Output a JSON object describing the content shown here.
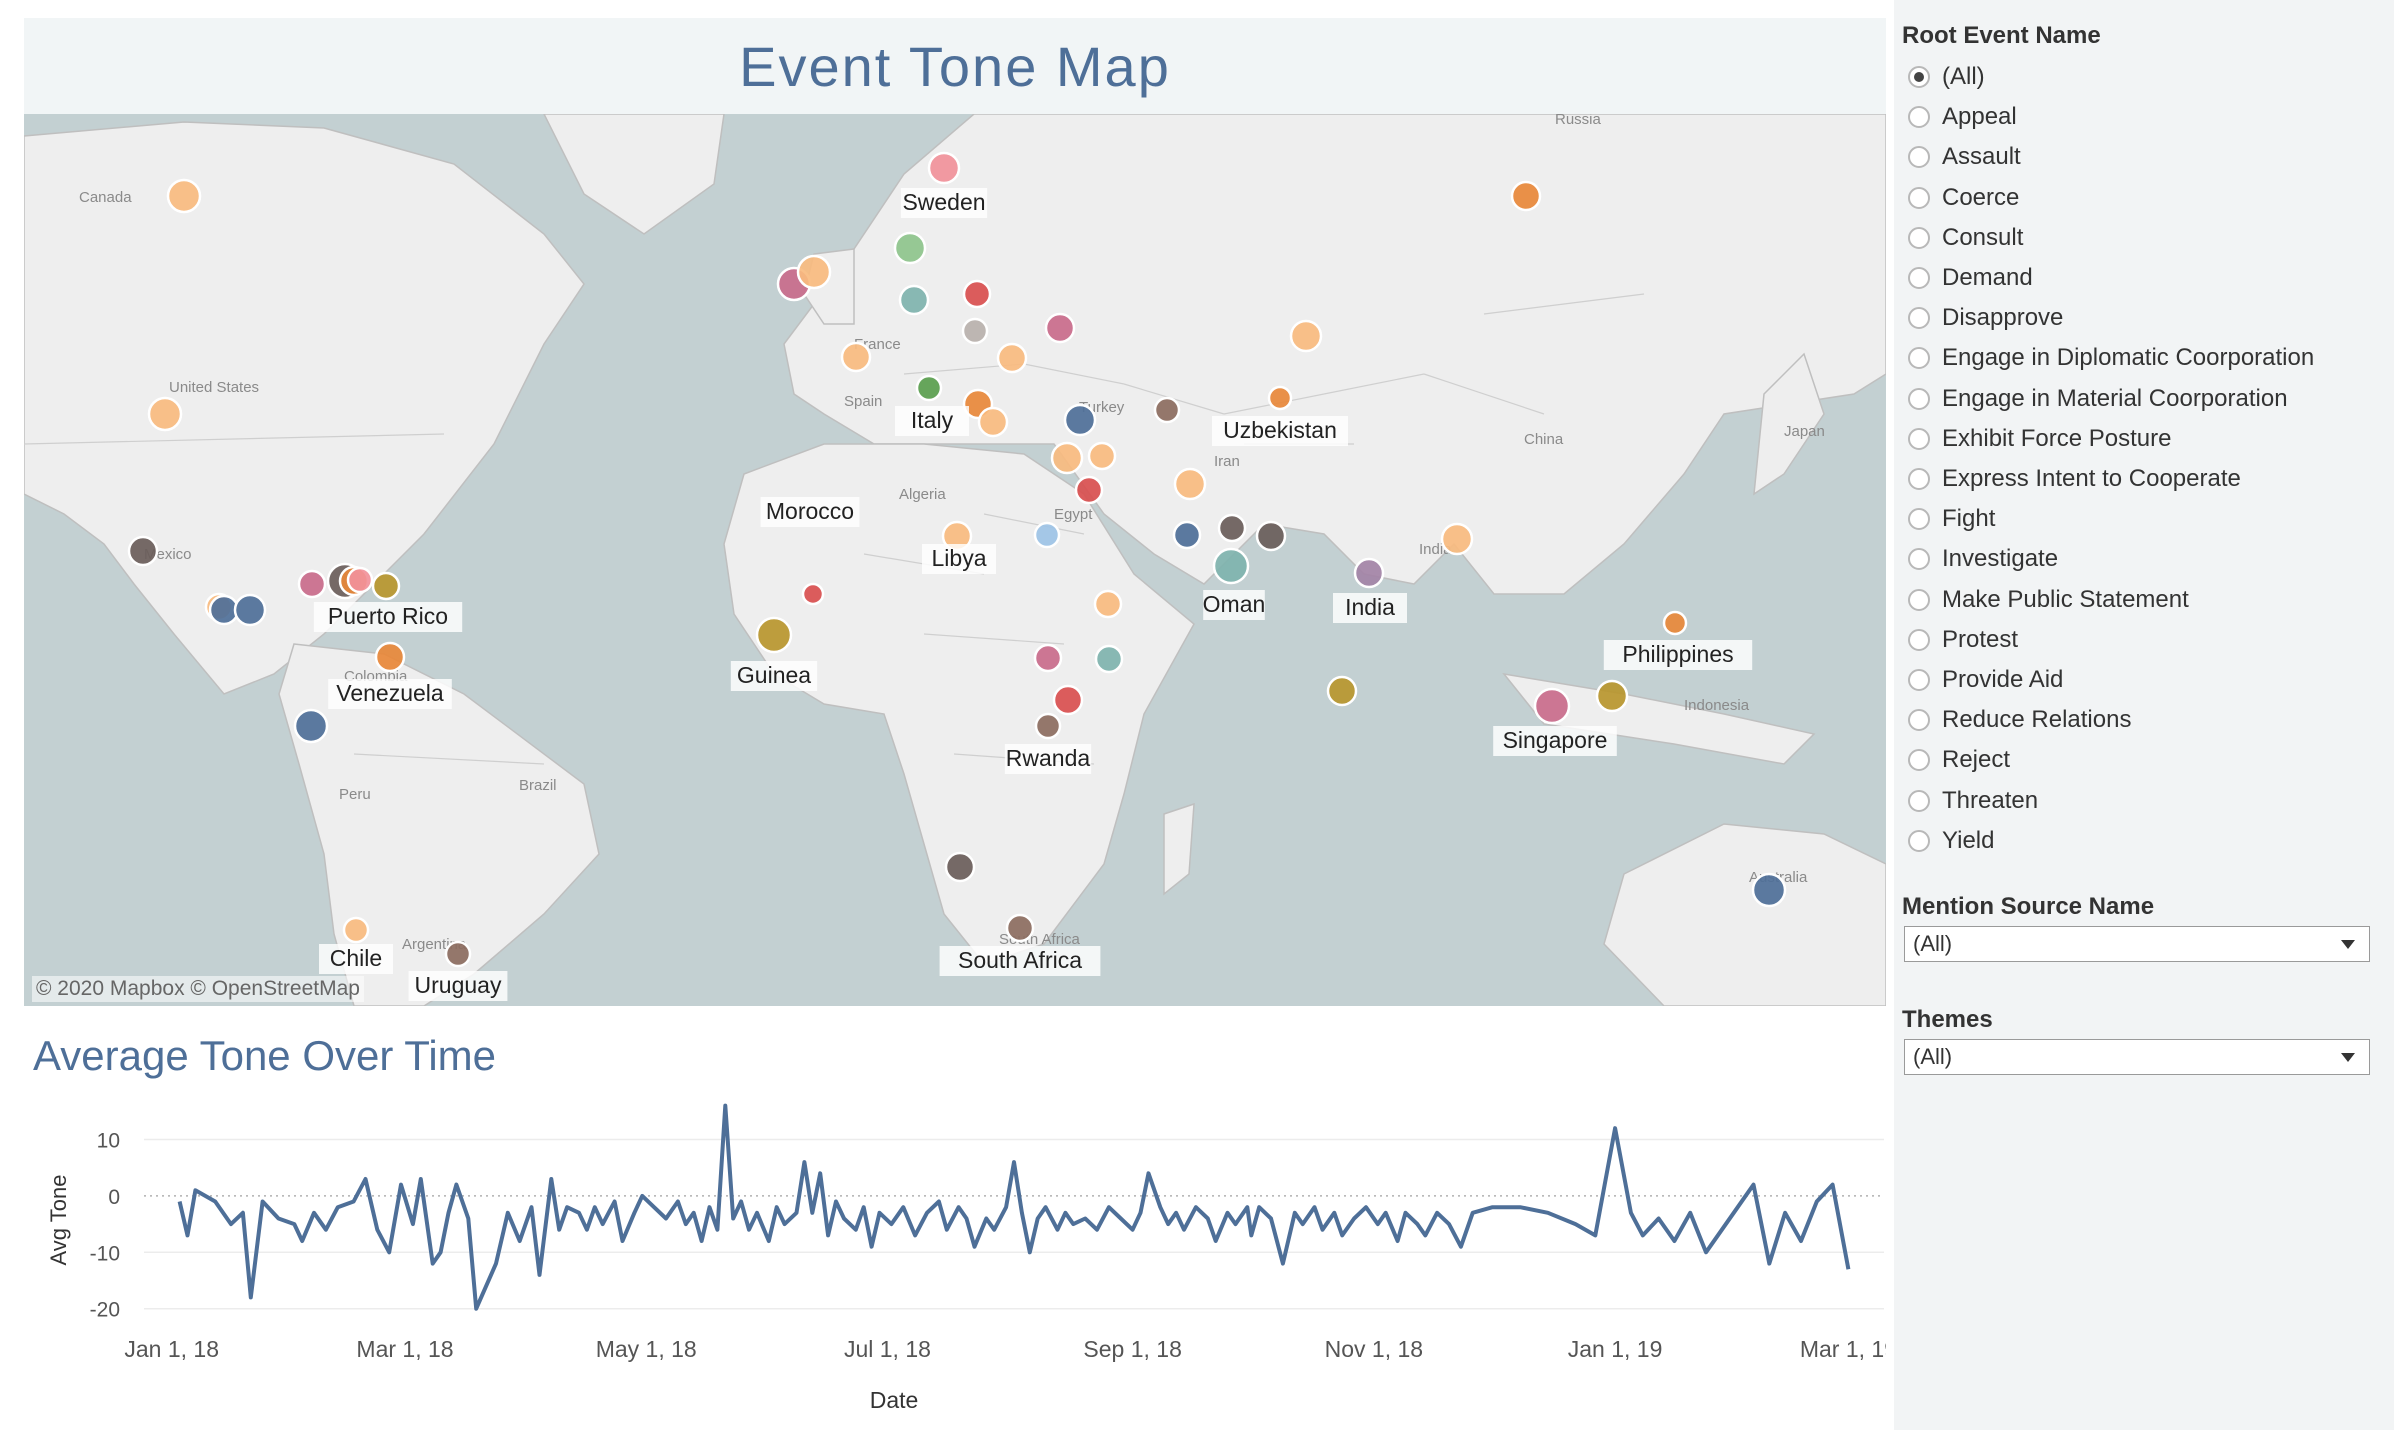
{
  "header": {
    "title": "Event Tone Map"
  },
  "map": {
    "attribution": "© 2020 Mapbox © OpenStreetMap",
    "base_labels": [
      "Russia",
      "Canada",
      "United States",
      "Spain",
      "France",
      "Algeria",
      "Egypt",
      "Turkey",
      "Iran",
      "China",
      "Japan",
      "India",
      "Indonesia",
      "Colombia",
      "Peru",
      "Brazil",
      "Argentina",
      "South Africa",
      "Australia",
      "Mexico"
    ],
    "country_labels": [
      "Sweden",
      "Italy",
      "Morocco",
      "Libya",
      "Uzbekistan",
      "Oman",
      "India",
      "Philippines",
      "Singapore",
      "Puerto Rico",
      "Venezuela",
      "Guinea",
      "Rwanda",
      "Chile",
      "Uruguay",
      "South Africa"
    ],
    "palette": [
      "#f8bb7f",
      "#e8883a",
      "#d94f4f",
      "#f1919a",
      "#c96b8b",
      "#8ec48c",
      "#5a9e4e",
      "#9ec9c4",
      "#7fb3ae",
      "#4e6f98",
      "#6a5d5a",
      "#8c6d5f",
      "#b8962e",
      "#b9b1ad",
      "#a383a6",
      "#9dc3e6"
    ]
  },
  "chart": {
    "title": "Average Tone Over Time",
    "xlabel": "Date",
    "ylabel": "Avg Tone",
    "x_ticks": [
      "Jan 1, 18",
      "Mar 1, 18",
      "May 1, 18",
      "Jul 1, 18",
      "Sep 1, 18",
      "Nov 1, 18",
      "Jan 1, 19",
      "Mar 1, 19"
    ],
    "y_ticks": [
      "10",
      "0",
      "-10",
      "-20"
    ]
  },
  "chart_data": {
    "type": "line",
    "title": "Average Tone Over Time",
    "xlabel": "Date",
    "ylabel": "Avg Tone",
    "ylim": [
      -22,
      17
    ],
    "x_range": [
      "2017-12-25",
      "2019-03-10"
    ],
    "color": "#4e6f98",
    "series": [
      {
        "points": [
          [
            "2018-01-03",
            -1
          ],
          [
            "2018-01-05",
            -7
          ],
          [
            "2018-01-07",
            1
          ],
          [
            "2018-01-12",
            -1
          ],
          [
            "2018-01-16",
            -5
          ],
          [
            "2018-01-19",
            -3
          ],
          [
            "2018-01-21",
            -18
          ],
          [
            "2018-01-24",
            -1
          ],
          [
            "2018-01-28",
            -4
          ],
          [
            "2018-02-01",
            -5
          ],
          [
            "2018-02-03",
            -8
          ],
          [
            "2018-02-06",
            -3
          ],
          [
            "2018-02-09",
            -6
          ],
          [
            "2018-02-12",
            -2
          ],
          [
            "2018-02-16",
            -1
          ],
          [
            "2018-02-19",
            3
          ],
          [
            "2018-02-22",
            -6
          ],
          [
            "2018-02-25",
            -10
          ],
          [
            "2018-02-28",
            2
          ],
          [
            "2018-03-03",
            -5
          ],
          [
            "2018-03-05",
            3
          ],
          [
            "2018-03-08",
            -12
          ],
          [
            "2018-03-10",
            -10
          ],
          [
            "2018-03-12",
            -3
          ],
          [
            "2018-03-14",
            2
          ],
          [
            "2018-03-17",
            -4
          ],
          [
            "2018-03-19",
            -20
          ],
          [
            "2018-03-24",
            -12
          ],
          [
            "2018-03-27",
            -3
          ],
          [
            "2018-03-30",
            -8
          ],
          [
            "2018-04-02",
            -2
          ],
          [
            "2018-04-04",
            -14
          ],
          [
            "2018-04-07",
            3
          ],
          [
            "2018-04-09",
            -6
          ],
          [
            "2018-04-11",
            -2
          ],
          [
            "2018-04-14",
            -3
          ],
          [
            "2018-04-16",
            -6
          ],
          [
            "2018-04-18",
            -2
          ],
          [
            "2018-04-20",
            -5
          ],
          [
            "2018-04-23",
            -1
          ],
          [
            "2018-04-25",
            -8
          ],
          [
            "2018-04-28",
            -3
          ],
          [
            "2018-04-30",
            0
          ],
          [
            "2018-05-03",
            -2
          ],
          [
            "2018-05-06",
            -4
          ],
          [
            "2018-05-09",
            -1
          ],
          [
            "2018-05-11",
            -5
          ],
          [
            "2018-05-13",
            -3
          ],
          [
            "2018-05-15",
            -8
          ],
          [
            "2018-05-17",
            -2
          ],
          [
            "2018-05-19",
            -6
          ],
          [
            "2018-05-21",
            16
          ],
          [
            "2018-05-23",
            -4
          ],
          [
            "2018-05-25",
            -1
          ],
          [
            "2018-05-27",
            -6
          ],
          [
            "2018-05-29",
            -3
          ],
          [
            "2018-06-01",
            -8
          ],
          [
            "2018-06-03",
            -2
          ],
          [
            "2018-06-05",
            -5
          ],
          [
            "2018-06-08",
            -3
          ],
          [
            "2018-06-10",
            6
          ],
          [
            "2018-06-12",
            -3
          ],
          [
            "2018-06-14",
            4
          ],
          [
            "2018-06-16",
            -7
          ],
          [
            "2018-06-18",
            -1
          ],
          [
            "2018-06-20",
            -4
          ],
          [
            "2018-06-23",
            -6
          ],
          [
            "2018-06-25",
            -2
          ],
          [
            "2018-06-27",
            -9
          ],
          [
            "2018-06-29",
            -3
          ],
          [
            "2018-07-02",
            -5
          ],
          [
            "2018-07-05",
            -2
          ],
          [
            "2018-07-08",
            -7
          ],
          [
            "2018-07-11",
            -3
          ],
          [
            "2018-07-14",
            -1
          ],
          [
            "2018-07-16",
            -6
          ],
          [
            "2018-07-19",
            -2
          ],
          [
            "2018-07-21",
            -4
          ],
          [
            "2018-07-23",
            -9
          ],
          [
            "2018-07-26",
            -4
          ],
          [
            "2018-07-28",
            -6
          ],
          [
            "2018-07-31",
            -2
          ],
          [
            "2018-08-02",
            6
          ],
          [
            "2018-08-04",
            -3
          ],
          [
            "2018-08-06",
            -10
          ],
          [
            "2018-08-08",
            -4
          ],
          [
            "2018-08-10",
            -2
          ],
          [
            "2018-08-13",
            -6
          ],
          [
            "2018-08-15",
            -3
          ],
          [
            "2018-08-17",
            -5
          ],
          [
            "2018-08-20",
            -4
          ],
          [
            "2018-08-23",
            -6
          ],
          [
            "2018-08-26",
            -2
          ],
          [
            "2018-08-29",
            -4
          ],
          [
            "2018-09-01",
            -6
          ],
          [
            "2018-09-03",
            -3
          ],
          [
            "2018-09-05",
            4
          ],
          [
            "2018-09-08",
            -2
          ],
          [
            "2018-09-10",
            -5
          ],
          [
            "2018-09-12",
            -3
          ],
          [
            "2018-09-14",
            -6
          ],
          [
            "2018-09-17",
            -2
          ],
          [
            "2018-09-20",
            -4
          ],
          [
            "2018-09-22",
            -8
          ],
          [
            "2018-09-25",
            -3
          ],
          [
            "2018-09-27",
            -5
          ],
          [
            "2018-09-30",
            -2
          ],
          [
            "2018-10-01",
            -7
          ],
          [
            "2018-10-03",
            -2
          ],
          [
            "2018-10-06",
            -4
          ],
          [
            "2018-10-09",
            -12
          ],
          [
            "2018-10-12",
            -3
          ],
          [
            "2018-10-14",
            -5
          ],
          [
            "2018-10-17",
            -2
          ],
          [
            "2018-10-19",
            -6
          ],
          [
            "2018-10-22",
            -3
          ],
          [
            "2018-10-24",
            -7
          ],
          [
            "2018-10-27",
            -4
          ],
          [
            "2018-10-30",
            -2
          ],
          [
            "2018-11-02",
            -5
          ],
          [
            "2018-11-04",
            -3
          ],
          [
            "2018-11-07",
            -8
          ],
          [
            "2018-11-09",
            -3
          ],
          [
            "2018-11-12",
            -5
          ],
          [
            "2018-11-14",
            -7
          ],
          [
            "2018-11-17",
            -3
          ],
          [
            "2018-11-20",
            -5
          ],
          [
            "2018-11-23",
            -9
          ],
          [
            "2018-11-26",
            -3
          ],
          [
            "2018-12-01",
            -2
          ],
          [
            "2018-12-08",
            -2
          ],
          [
            "2018-12-15",
            -3
          ],
          [
            "2018-12-22",
            -5
          ],
          [
            "2018-12-27",
            -7
          ],
          [
            "2019-01-01",
            12
          ],
          [
            "2019-01-05",
            -3
          ],
          [
            "2019-01-08",
            -7
          ],
          [
            "2019-01-12",
            -4
          ],
          [
            "2019-01-16",
            -8
          ],
          [
            "2019-01-20",
            -3
          ],
          [
            "2019-01-24",
            -10
          ],
          [
            "2019-01-28",
            -6
          ],
          [
            "2019-02-01",
            -2
          ],
          [
            "2019-02-05",
            2
          ],
          [
            "2019-02-09",
            -12
          ],
          [
            "2019-02-13",
            -3
          ],
          [
            "2019-02-17",
            -8
          ],
          [
            "2019-02-21",
            -1
          ],
          [
            "2019-02-25",
            2
          ],
          [
            "2019-03-01",
            -13
          ]
        ]
      }
    ]
  },
  "sidebar": {
    "root_event": {
      "heading": "Root Event Name",
      "options": [
        "(All)",
        "Appeal",
        "Assault",
        "Coerce",
        "Consult",
        "Demand",
        "Disapprove",
        "Engage in Diplomatic Coorporation",
        "Engage in Material Coorporation",
        "Exhibit Force Posture",
        "Express Intent to Cooperate",
        "Fight",
        "Investigate",
        "Make Public Statement",
        "Protest",
        "Provide Aid",
        "Reduce Relations",
        "Reject",
        "Threaten",
        "Yield"
      ],
      "selected": "(All)"
    },
    "mention_source": {
      "heading": "Mention Source Name",
      "value": "(All)"
    },
    "themes": {
      "heading": "Themes",
      "value": "(All)"
    }
  }
}
